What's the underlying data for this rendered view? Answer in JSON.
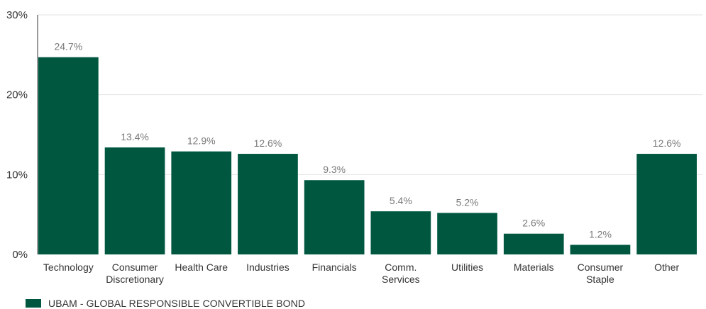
{
  "chart_data": {
    "type": "bar",
    "title": "",
    "xlabel": "",
    "ylabel": "",
    "ylim": [
      0,
      30
    ],
    "yticks": [
      "0%",
      "10%",
      "20%",
      "30%"
    ],
    "ytick_values": [
      0,
      10,
      20,
      30
    ],
    "grid": true,
    "legend_position": "bottom-left",
    "categories": [
      [
        "Technology"
      ],
      [
        "Consumer",
        "Discretionary"
      ],
      [
        "Health Care"
      ],
      [
        "Industries"
      ],
      [
        "Financials"
      ],
      [
        "Comm.",
        "Services"
      ],
      [
        "Utilities"
      ],
      [
        "Materials"
      ],
      [
        "Consumer",
        "Staple"
      ],
      [
        "Other"
      ]
    ],
    "series": [
      {
        "name": "UBAM - GLOBAL RESPONSIBLE CONVERTIBLE BOND",
        "color": "#005740",
        "values": [
          24.7,
          13.4,
          12.9,
          12.6,
          9.3,
          5.4,
          5.2,
          2.6,
          1.2,
          12.6
        ],
        "labels": [
          "24.7%",
          "13.4%",
          "12.9%",
          "12.6%",
          "9.3%",
          "5.4%",
          "5.2%",
          "2.6%",
          "1.2%",
          "12.6%"
        ]
      }
    ]
  }
}
